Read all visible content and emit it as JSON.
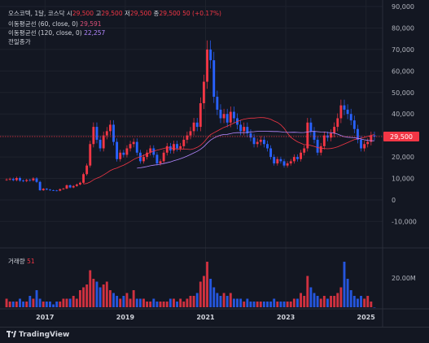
{
  "legend": {
    "symbol": "오스코텍, 1달, 코스닥",
    "open_label": "시",
    "open": "29,500",
    "high_label": "고",
    "high": "29,500",
    "low_label": "저",
    "low": "29,500",
    "close_label": "종",
    "close": "29,500",
    "change": "50 (+0.17%)",
    "ma60_label": "이동평균선 (60, close, 0)",
    "ma60_value": "29,591",
    "ma120_label": "이동평균선 (120, close, 0)",
    "ma120_value": "22,257",
    "prev_close_label": "전일종가"
  },
  "volume": {
    "label": "거래량",
    "value": "51",
    "axis_tick": "20.00M"
  },
  "footer": {
    "brand": "TradingView"
  },
  "colors": {
    "up": "#f23645",
    "down": "#2962ff",
    "ma60": "#f23645",
    "ma120": "#b388ff",
    "price_line": "#f23645"
  },
  "chart_data": {
    "type": "candlestick",
    "interval": "1 month",
    "price_axis_ticks": [
      "90,000",
      "80,000",
      "70,000",
      "60,000",
      "50,000",
      "40,000",
      "30,000",
      "20,000",
      "10,000",
      "0",
      "-10,000"
    ],
    "price_range": [
      -14000,
      90000
    ],
    "last_price": "29,500",
    "x_ticks": [
      "2017",
      "2019",
      "2021",
      "2023",
      "2025"
    ],
    "x_tick_years": [
      2017,
      2019,
      2021,
      2023,
      2025
    ],
    "start_year": 2016,
    "monthly_close": [
      9500,
      9800,
      9200,
      10200,
      9000,
      8800,
      9300,
      9100,
      10000,
      8400,
      4500,
      5200,
      4800,
      4500,
      4400,
      4300,
      5000,
      5300,
      6800,
      5800,
      6500,
      7200,
      8000,
      12000,
      16000,
      26000,
      34000,
      28000,
      24000,
      30000,
      32000,
      35000,
      27000,
      19000,
      22000,
      21000,
      24000,
      26000,
      27000,
      22000,
      18000,
      20000,
      22000,
      24000,
      21000,
      17000,
      18000,
      22000,
      25000,
      23000,
      26000,
      24000,
      25000,
      28000,
      30000,
      32000,
      36000,
      34000,
      45000,
      55000,
      70000,
      65000,
      48000,
      42000,
      38000,
      40000,
      36000,
      41000,
      38000,
      35000,
      32000,
      34000,
      31000,
      29000,
      26000,
      27000,
      28000,
      26000,
      24000,
      20000,
      17000,
      19000,
      18000,
      16000,
      17000,
      18000,
      20000,
      19000,
      22000,
      24000,
      36000,
      32000,
      28000,
      22000,
      25000,
      30000,
      29000,
      31000,
      34000,
      38000,
      44000,
      42000,
      40000,
      37000,
      33000,
      28000,
      24000,
      26000,
      27000,
      30000,
      29500
    ],
    "volume_series": [
      3,
      2,
      2,
      2,
      3,
      2,
      2,
      4,
      3,
      6,
      3,
      2,
      2,
      2,
      1,
      2,
      2,
      3,
      3,
      3,
      4,
      3,
      6,
      7,
      8,
      13,
      10,
      9,
      7,
      8,
      9,
      6,
      5,
      4,
      3,
      4,
      5,
      3,
      6,
      3,
      3,
      3,
      2,
      2,
      3,
      2,
      2,
      2,
      2,
      3,
      3,
      2,
      3,
      2,
      3,
      4,
      4,
      5,
      9,
      11,
      16,
      10,
      7,
      5,
      4,
      5,
      4,
      5,
      3,
      3,
      3,
      2,
      3,
      2,
      2,
      2,
      2,
      2,
      2,
      2,
      3,
      2,
      2,
      2,
      2,
      2,
      3,
      3,
      5,
      4,
      11,
      7,
      5,
      4,
      3,
      4,
      3,
      4,
      4,
      5,
      7,
      16,
      10,
      6,
      4,
      3,
      4,
      3,
      4,
      2,
      0
    ]
  }
}
